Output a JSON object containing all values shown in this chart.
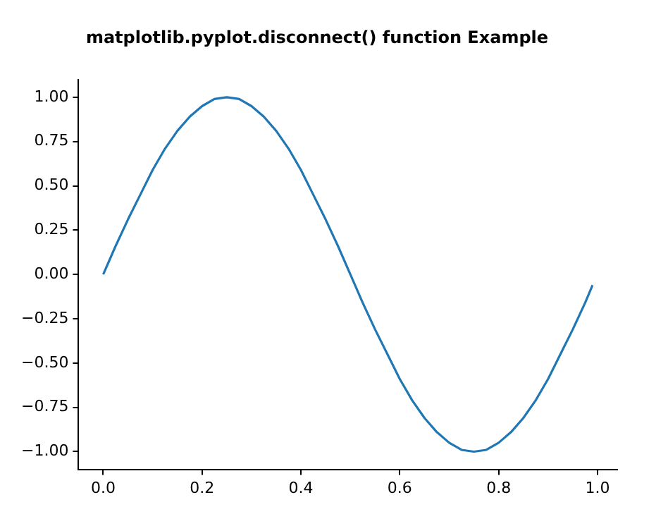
{
  "chart_data": {
    "type": "line",
    "title": "matplotlib.pyplot.disconnect() function Example",
    "x": [
      0,
      0.025,
      0.05,
      0.075,
      0.1,
      0.125,
      0.15,
      0.175,
      0.2,
      0.225,
      0.25,
      0.275,
      0.3,
      0.325,
      0.35,
      0.375,
      0.4,
      0.425,
      0.45,
      0.475,
      0.5,
      0.525,
      0.55,
      0.575,
      0.6,
      0.625,
      0.65,
      0.675,
      0.7,
      0.725,
      0.75,
      0.775,
      0.8,
      0.825,
      0.85,
      0.875,
      0.9,
      0.925,
      0.95,
      0.975,
      0.99
    ],
    "series": [
      {
        "color": "#1f77b4",
        "values": [
          0,
          0.16,
          0.31,
          0.45,
          0.59,
          0.71,
          0.81,
          0.89,
          0.95,
          0.99,
          1,
          0.99,
          0.95,
          0.89,
          0.81,
          0.71,
          0.59,
          0.45,
          0.31,
          0.16,
          0,
          -0.16,
          -0.31,
          -0.45,
          -0.59,
          -0.71,
          -0.81,
          -0.89,
          -0.95,
          -0.99,
          -1,
          -0.99,
          -0.95,
          -0.89,
          -0.81,
          -0.71,
          -0.59,
          -0.45,
          -0.31,
          -0.16,
          -0.06
        ]
      }
    ],
    "xlim": [
      -0.05,
      1.04
    ],
    "ylim": [
      -1.1,
      1.1
    ],
    "xticks": [
      {
        "value": 0,
        "label": "0.0"
      },
      {
        "value": 0.2,
        "label": "0.2"
      },
      {
        "value": 0.4,
        "label": "0.4"
      },
      {
        "value": 0.6,
        "label": "0.6"
      },
      {
        "value": 0.8,
        "label": "0.8"
      },
      {
        "value": 1,
        "label": "1.0"
      }
    ],
    "yticks": [
      {
        "value": -1,
        "label": "−1.00"
      },
      {
        "value": -0.75,
        "label": "−0.75"
      },
      {
        "value": -0.5,
        "label": "−0.50"
      },
      {
        "value": -0.25,
        "label": "−0.25"
      },
      {
        "value": 0,
        "label": "0.00"
      },
      {
        "value": 0.25,
        "label": "0.25"
      },
      {
        "value": 0.5,
        "label": "0.50"
      },
      {
        "value": 0.75,
        "label": "0.75"
      },
      {
        "value": 1,
        "label": "1.00"
      }
    ],
    "grid": false,
    "legend": false,
    "marker": "none",
    "line_style": "solid"
  }
}
